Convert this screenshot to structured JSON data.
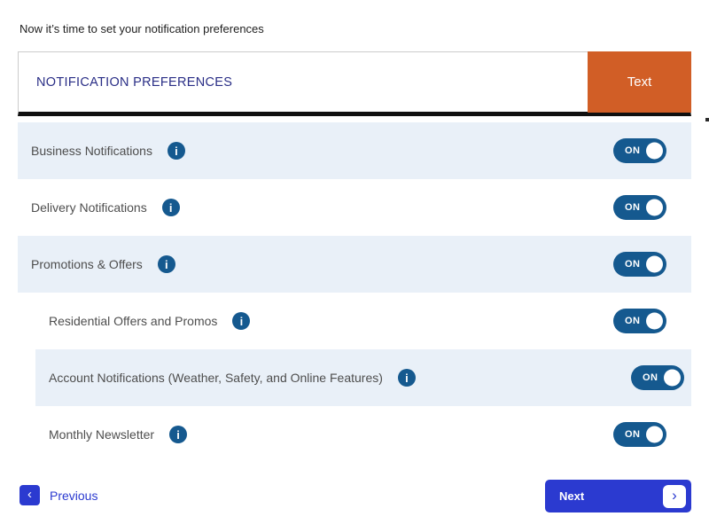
{
  "intro": "Now it’s time to set your notification preferences",
  "panel": {
    "title": "NOTIFICATION PREFERENCES",
    "action_label": "Text",
    "accent_orange": "#d15e26",
    "title_color": "#2a2e86"
  },
  "rows": [
    {
      "label": "Business Notifications",
      "toggle": "ON"
    },
    {
      "label": "Delivery Notifications",
      "toggle": "ON"
    },
    {
      "label": "Promotions & Offers",
      "toggle": "ON"
    },
    {
      "label": "Residential Offers and Promos",
      "toggle": "ON"
    },
    {
      "label": "Account Notifications (Weather, Safety, and Online Features)",
      "toggle": "ON"
    },
    {
      "label": "Monthly Newsletter",
      "toggle": "ON"
    }
  ],
  "icons": {
    "info": "i",
    "prev_chevron": "‹",
    "next_chevron": "›"
  },
  "footer": {
    "previous_label": "Previous",
    "next_label": "Next"
  },
  "colors": {
    "row_alt_background": "#e9f0f8",
    "toggle_blue": "#15598f",
    "nav_blue": "#2b3ad0"
  }
}
